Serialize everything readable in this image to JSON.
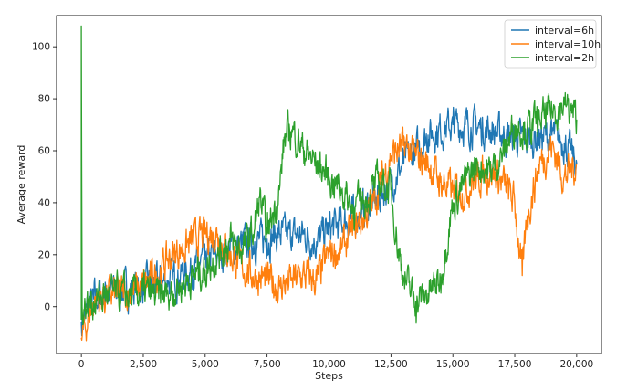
{
  "chart_data": {
    "type": "line",
    "xlabel": "Steps",
    "ylabel": "Average reward",
    "xlim": [
      -1000,
      21000
    ],
    "ylim": [
      -18,
      112
    ],
    "x_ticks": [
      0,
      2500,
      5000,
      7500,
      10000,
      12500,
      15000,
      17500,
      20000
    ],
    "x_tick_labels": [
      "0",
      "2,500",
      "5,000",
      "7,500",
      "10,000",
      "12,500",
      "15,000",
      "17,500",
      "20,000"
    ],
    "y_ticks": [
      0,
      20,
      40,
      60,
      80,
      100
    ],
    "y_tick_labels": [
      "0",
      "20",
      "40",
      "60",
      "80",
      "100"
    ],
    "grid": false,
    "legend_position": "top-right",
    "series": [
      {
        "name": "interval=6h",
        "color": "#1f77b4",
        "x": [
          0,
          500,
          1000,
          1500,
          2000,
          2500,
          3000,
          3500,
          4000,
          4500,
          5000,
          5500,
          6000,
          6500,
          7000,
          7500,
          8000,
          8500,
          9000,
          9500,
          10000,
          10500,
          11000,
          11500,
          12000,
          12500,
          13000,
          13500,
          14000,
          14500,
          15000,
          15500,
          16000,
          16500,
          17000,
          17500,
          18000,
          18500,
          19000,
          19500,
          20000
        ],
        "y": [
          -6,
          3,
          5,
          6,
          7,
          8,
          9,
          10,
          12,
          14,
          18,
          20,
          22,
          24,
          25,
          26,
          28,
          27,
          28,
          25,
          30,
          32,
          35,
          38,
          42,
          48,
          55,
          60,
          66,
          68,
          70,
          70,
          69,
          68,
          66,
          65,
          64,
          65,
          66,
          63,
          55
        ]
      },
      {
        "name": "interval=10h",
        "color": "#ff7f0e",
        "x": [
          0,
          500,
          1000,
          1500,
          2000,
          2500,
          3000,
          3500,
          4000,
          4500,
          5000,
          5500,
          6000,
          6500,
          7000,
          7500,
          8000,
          8500,
          9000,
          9500,
          10000,
          10500,
          11000,
          11500,
          12000,
          12500,
          13000,
          13500,
          14000,
          14500,
          15000,
          15500,
          16000,
          16500,
          17000,
          17500,
          17800,
          18000,
          18500,
          19000,
          19500,
          20000
        ],
        "y": [
          -12,
          2,
          4,
          5,
          6,
          8,
          12,
          18,
          22,
          25,
          28,
          28,
          20,
          15,
          12,
          10,
          8,
          10,
          12,
          10,
          20,
          22,
          30,
          35,
          45,
          58,
          62,
          58,
          55,
          48,
          45,
          45,
          50,
          52,
          48,
          40,
          12,
          35,
          55,
          62,
          50,
          55
        ]
      },
      {
        "name": "interval=2h",
        "color": "#2ca02c",
        "x": [
          0,
          0,
          30,
          500,
          1000,
          1500,
          2000,
          2500,
          3000,
          3500,
          4000,
          4500,
          5000,
          5500,
          6000,
          6500,
          7000,
          7200,
          7500,
          8000,
          8200,
          8500,
          9000,
          9500,
          10000,
          10500,
          11000,
          11500,
          12000,
          12500,
          12800,
          13000,
          13500,
          14000,
          14500,
          15000,
          15500,
          16000,
          16500,
          17000,
          17500,
          18000,
          18500,
          19000,
          19500,
          20000
        ],
        "y": [
          -5,
          108,
          0,
          2,
          5,
          5,
          4,
          6,
          4,
          5,
          8,
          12,
          14,
          20,
          25,
          22,
          30,
          42,
          28,
          45,
          65,
          68,
          60,
          55,
          50,
          45,
          38,
          42,
          48,
          45,
          22,
          12,
          2,
          5,
          10,
          40,
          48,
          55,
          52,
          58,
          70,
          68,
          72,
          75,
          78,
          72
        ]
      }
    ]
  }
}
